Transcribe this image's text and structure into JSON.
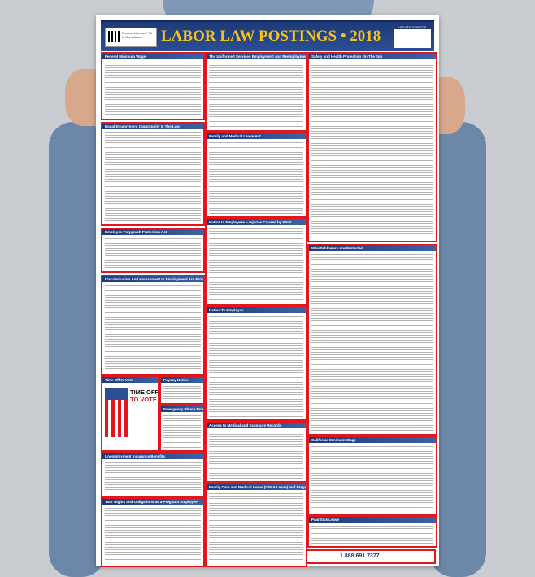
{
  "poster": {
    "title": "LABOR LAW POSTINGS • 2018",
    "qr_text": "Product Number / Sit in Compliance",
    "badge_text": "UPDATE SERVICE",
    "phone": "1.888.691.7377"
  },
  "panels": [
    {
      "id": "federal-minimum-wage",
      "title": "Federal Minimum Wage"
    },
    {
      "id": "eeo",
      "title": "Equal Employment Opportunity Is The Law"
    },
    {
      "id": "polygraph",
      "title": "Employee Polygraph Protection Act"
    },
    {
      "id": "discrimination",
      "title": "Discrimination And Harassment In Employment Are Prohibited By Law"
    },
    {
      "id": "time-off-vote",
      "title": "Time Off to Vote"
    },
    {
      "id": "payday",
      "title": "Payday Notice"
    },
    {
      "id": "emergency",
      "title": "Emergency Phone Numbers"
    },
    {
      "id": "unemployment",
      "title": "Unemployment Insurance Benefits"
    },
    {
      "id": "pregnant",
      "title": "Your Rights and Obligations as a Pregnant Employee"
    },
    {
      "id": "userra",
      "title": "The Uniformed Services Employment and Reemployment Rights Act"
    },
    {
      "id": "fmla",
      "title": "Family and Medical Leave Act"
    },
    {
      "id": "injuries",
      "title": "Notice to Employees – Injuries Caused by Work"
    },
    {
      "id": "notice-employee",
      "title": "Notice To Employee"
    },
    {
      "id": "access-records",
      "title": "Access to Medical and Exposure Records"
    },
    {
      "id": "cfra",
      "title": "Family Care and Medical Leave (CFRA Leave) and Pregnancy Disability Leave"
    },
    {
      "id": "safety",
      "title": "Safety and Health Protection On The Job"
    },
    {
      "id": "whistleblowers",
      "title": "Whistleblowers Are Protected"
    },
    {
      "id": "ca-minimum-wage",
      "title": "California Minimum Wage"
    },
    {
      "id": "paid-sick",
      "title": "Paid Sick Leave"
    }
  ],
  "vote": {
    "line1": "TIME OFF",
    "line2": "TO VOTE"
  },
  "colors": {
    "banner": "#1d3a78",
    "title": "#f4c21a",
    "border": "#e3161c"
  }
}
